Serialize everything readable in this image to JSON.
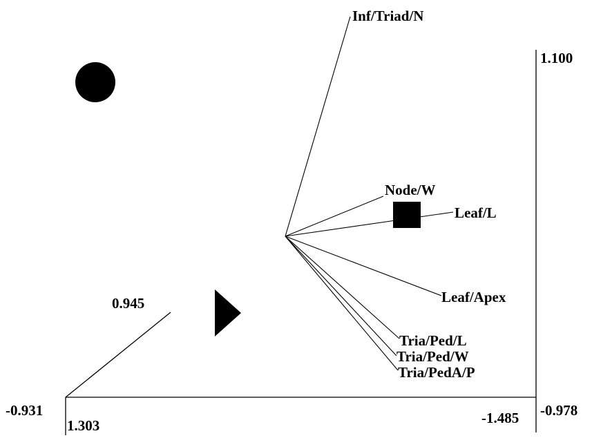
{
  "chart_data": {
    "type": "scatter",
    "subtype": "3d-ordination-biplot",
    "axes": {
      "horizontal": {
        "tick_labels": [
          "-0.931",
          "-0.978"
        ]
      },
      "vertical": {
        "tick_labels": [
          "1.100"
        ]
      },
      "depth": {
        "tick_labels": [
          "1.303",
          "0.945",
          "-1.485"
        ]
      }
    },
    "points": [
      {
        "marker": "circle",
        "color": "#000000"
      },
      {
        "marker": "square",
        "color": "#000000"
      },
      {
        "marker": "triangle",
        "color": "#000000"
      }
    ],
    "vectors": [
      {
        "label": "Inf/Triad/N"
      },
      {
        "label": "Node/W"
      },
      {
        "label": "Leaf/L"
      },
      {
        "label": "Leaf/Apex"
      },
      {
        "label": "Tria/Ped/L"
      },
      {
        "label": "Tria/Ped/W"
      },
      {
        "label": "Tria/PedA/P"
      }
    ],
    "grid": false,
    "legend": "none"
  }
}
